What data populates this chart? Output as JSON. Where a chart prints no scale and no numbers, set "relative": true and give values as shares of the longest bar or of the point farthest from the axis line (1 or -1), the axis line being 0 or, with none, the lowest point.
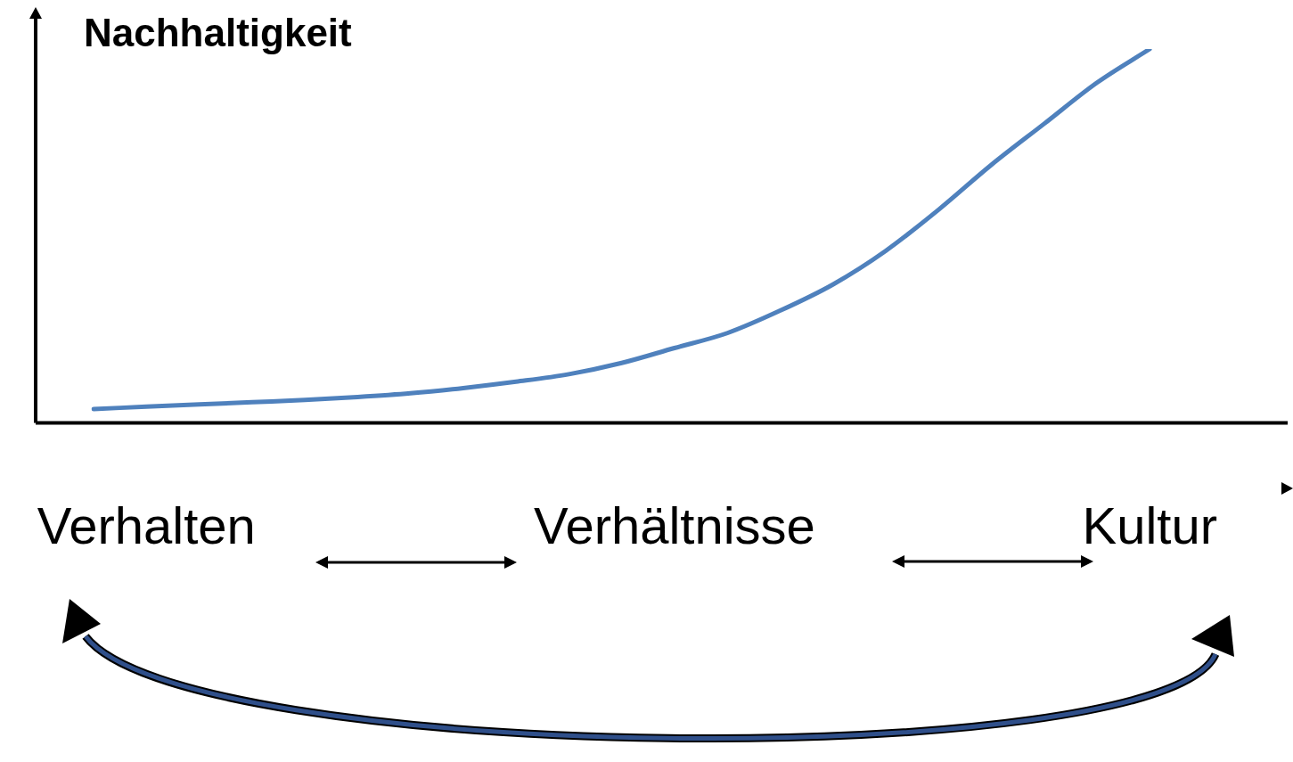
{
  "chart_data": {
    "type": "line",
    "relative": true,
    "ylabel": "Nachhaltigkeit",
    "categories": [
      null,
      "Verhalten",
      null,
      null,
      null,
      null,
      null,
      null,
      null,
      null,
      null,
      "Verhältnisse",
      null,
      null,
      null,
      null,
      null,
      null,
      null,
      null,
      "Kultur"
    ],
    "series": [
      {
        "color": "#4f81bd",
        "values": [
          0.037,
          0.043,
          0.049,
          0.055,
          0.061,
          0.069,
          0.079,
          0.093,
          0.11,
          0.13,
          0.16,
          0.2,
          0.24,
          0.3,
          0.37,
          0.46,
          0.57,
          0.69,
          0.8,
          0.91,
          1
        ]
      }
    ]
  }
}
